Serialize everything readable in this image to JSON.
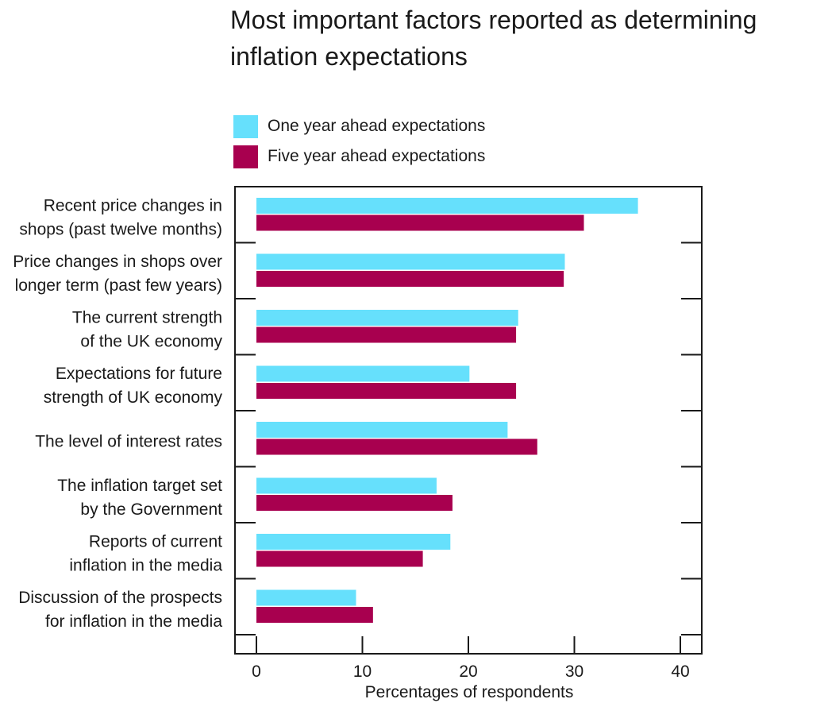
{
  "chart_data": {
    "type": "bar",
    "orientation": "horizontal",
    "title": "Most important factors reported as determining inflation expectations",
    "xlabel": "Percentages of respondents",
    "ylabel": "",
    "xlim": [
      0,
      40
    ],
    "xticks": [
      0,
      10,
      20,
      30,
      40
    ],
    "grid": false,
    "legend_position": "top",
    "categories": [
      [
        "Recent price changes in",
        "shops (past twelve months)"
      ],
      [
        "Price changes in shops over",
        "longer term (past few years)"
      ],
      [
        "The current strength",
        "of the UK economy"
      ],
      [
        "Expectations for future",
        "strength of UK economy"
      ],
      [
        "The level of interest rates"
      ],
      [
        "The inflation target set",
        "by the Government"
      ],
      [
        "Reports of current",
        "inflation in the media"
      ],
      [
        "Discussion of the prospects",
        "for inflation in the media"
      ]
    ],
    "series": [
      {
        "name": "One year ahead expectations",
        "color": "#66e0fc",
        "values": [
          36.0,
          29.1,
          24.7,
          20.1,
          23.7,
          17.0,
          18.3,
          9.4
        ]
      },
      {
        "name": "Five year ahead expectations",
        "color": "#a8004f",
        "values": [
          30.9,
          29.0,
          24.5,
          24.5,
          26.5,
          18.5,
          15.7,
          11.0
        ]
      }
    ]
  }
}
